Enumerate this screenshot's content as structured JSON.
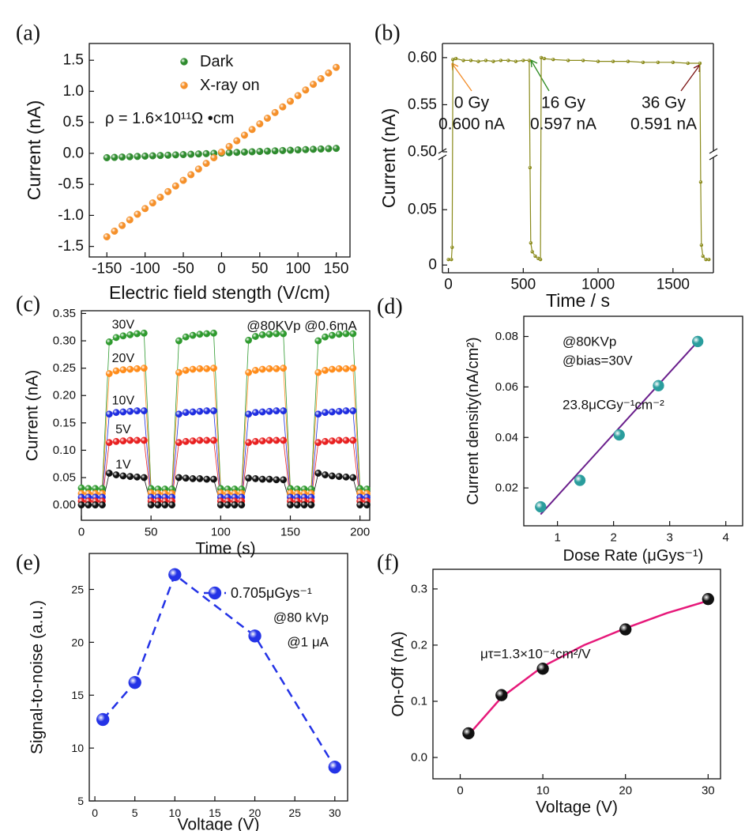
{
  "chart_data": [
    {
      "type": "scatter",
      "label": "(a)",
      "xlabel": "Electric field stength (V/cm)",
      "ylabel": "Current (nA)",
      "xlim": [
        -173,
        168
      ],
      "xticks": [
        -150,
        -100,
        -50,
        0,
        50,
        100,
        150
      ],
      "ylim": [
        -1.67,
        1.77
      ],
      "yticks": [
        -1.5,
        {
          "value": -1,
          "label": "-1.0"
        },
        -0.5,
        {
          "value": 0,
          "label": "0.0"
        },
        0.5,
        {
          "value": 1,
          "label": "1.0"
        },
        1.5
      ],
      "legend": "upper center",
      "grid": false,
      "annotations": [
        {
          "text": "ρ = 1.6×10¹¹Ω •cm",
          "color": "#111111"
        }
      ],
      "x": [
        -150,
        -140,
        -130,
        -120,
        -110,
        -100,
        -90,
        -80,
        -70,
        -60,
        -50,
        -40,
        -30,
        -20,
        -10,
        0,
        10,
        20,
        30,
        40,
        50,
        60,
        70,
        80,
        90,
        100,
        110,
        120,
        130,
        140,
        150
      ],
      "series": [
        {
          "name": "Dark",
          "color": "#2e8b2e",
          "marker": true,
          "values": [
            -0.07,
            -0.065,
            -0.06,
            -0.055,
            -0.05,
            -0.045,
            -0.04,
            -0.035,
            -0.03,
            -0.025,
            -0.02,
            -0.015,
            -0.01,
            -0.005,
            0,
            0.005,
            0.01,
            0.015,
            0.02,
            0.025,
            0.03,
            0.035,
            0.04,
            0.045,
            0.05,
            0.055,
            0.06,
            0.065,
            0.07,
            0.075,
            0.08
          ]
        },
        {
          "name": "X-ray on",
          "color": "#f5902a",
          "marker": true,
          "values": [
            -1.345,
            -1.254,
            -1.163,
            -1.072,
            -0.981,
            -0.89,
            -0.799,
            -0.708,
            -0.617,
            -0.526,
            -0.435,
            -0.344,
            -0.253,
            -0.162,
            -0.071,
            0.02,
            0.111,
            0.202,
            0.293,
            0.384,
            0.475,
            0.566,
            0.657,
            0.748,
            0.839,
            0.93,
            1.021,
            1.112,
            1.203,
            1.294,
            1.385
          ]
        }
      ]
    },
    {
      "type": "line",
      "label": "(b)",
      "xlabel": "Time / s",
      "ylabel": "Current (nA)",
      "xlim": [
        -40,
        1770
      ],
      "xticks": [
        0,
        500,
        1000,
        1500
      ],
      "ylim_lower": [
        -0.007,
        0.098
      ],
      "yticks_lower": [
        0,
        0.05
      ],
      "ylim_upper": [
        0.5,
        0.615
      ],
      "yticks_upper": [
        {
          "value": 0.5,
          "label": "0.50"
        },
        0.55,
        {
          "value": 0.6,
          "label": "0.60"
        }
      ],
      "grid": false,
      "annotations": [
        {
          "text": "0 Gy",
          "color": "#f28c28"
        },
        {
          "text": "0.600 nA",
          "color": "#f28c28"
        },
        {
          "text": "16 Gy",
          "color": "#2e8b22"
        },
        {
          "text": "0.597 nA",
          "color": "#2e8b22"
        },
        {
          "text": "36 Gy",
          "color": "#7a1010"
        },
        {
          "text": "0.591 nA",
          "color": "#7a1010"
        }
      ],
      "series": [
        {
          "color": "#8a8a1a",
          "line": "solid",
          "marker": true,
          "x": [
            0,
            20,
            25,
            30,
            50,
            100,
            150,
            200,
            250,
            300,
            350,
            400,
            450,
            500,
            540,
            545,
            550,
            560,
            580,
            600,
            615,
            620,
            640,
            700,
            800,
            900,
            1000,
            1100,
            1200,
            1300,
            1400,
            1500,
            1600,
            1680,
            1685,
            1690,
            1700,
            1720,
            1740
          ],
          "values": [
            0.005,
            0.005,
            0.016,
            0.598,
            0.599,
            0.597,
            0.597,
            0.596,
            0.597,
            0.596,
            0.597,
            0.597,
            0.596,
            0.597,
            0.597,
            0.088,
            0.02,
            0.012,
            0.008,
            0.006,
            0.005,
            0.6,
            0.599,
            0.598,
            0.597,
            0.597,
            0.596,
            0.596,
            0.596,
            0.595,
            0.595,
            0.595,
            0.594,
            0.594,
            0.075,
            0.018,
            0.008,
            0.005,
            0.005
          ]
        }
      ]
    },
    {
      "type": "scatter",
      "label": "(c)",
      "xlabel": "Time (s)",
      "ylabel": "Current (nA)",
      "xlim": [
        0,
        207
      ],
      "xticks": [
        0,
        50,
        100,
        150,
        200
      ],
      "ylim": [
        -0.028,
        0.355
      ],
      "yticks": [
        {
          "value": 0,
          "label": "0.00"
        },
        0.05,
        {
          "value": 0.1,
          "label": "0.10"
        },
        0.15,
        {
          "value": 0.2,
          "label": "0.20"
        },
        0.25,
        {
          "value": 0.3,
          "label": "0.30"
        },
        0.35
      ],
      "legend": "inline",
      "grid": false,
      "annotations": [
        {
          "text": "@80KVp @0.6mA",
          "color": "#111111"
        }
      ],
      "x": [
        0,
        5,
        10,
        15,
        20,
        25,
        30,
        35,
        40,
        45,
        50,
        55,
        60,
        65,
        70,
        75,
        80,
        85,
        90,
        95,
        100,
        105,
        110,
        115,
        120,
        125,
        130,
        135,
        140,
        145,
        150,
        155,
        160,
        165,
        170,
        175,
        180,
        185,
        190,
        195,
        200,
        205
      ],
      "series": [
        {
          "name": "30V",
          "color": "#2e9a2e",
          "line": "solid",
          "marker": true,
          "values": [
            0.031,
            0.03,
            0.03,
            0.03,
            0.298,
            0.306,
            0.309,
            0.311,
            0.313,
            0.314,
            0.03,
            0.029,
            0.029,
            0.029,
            0.3,
            0.307,
            0.31,
            0.312,
            0.313,
            0.314,
            0.03,
            0.029,
            0.029,
            0.029,
            0.301,
            0.308,
            0.311,
            0.312,
            0.313,
            0.313,
            0.03,
            0.029,
            0.029,
            0.029,
            0.3,
            0.307,
            0.31,
            0.312,
            0.313,
            0.313,
            0.03,
            0.029
          ]
        },
        {
          "name": "20V",
          "color": "#ff8c1a",
          "line": "solid",
          "marker": true,
          "values": [
            0.021,
            0.021,
            0.021,
            0.021,
            0.24,
            0.245,
            0.247,
            0.248,
            0.249,
            0.25,
            0.022,
            0.021,
            0.021,
            0.021,
            0.242,
            0.246,
            0.248,
            0.249,
            0.249,
            0.25,
            0.022,
            0.021,
            0.021,
            0.021,
            0.242,
            0.246,
            0.248,
            0.249,
            0.249,
            0.25,
            0.022,
            0.021,
            0.021,
            0.021,
            0.242,
            0.246,
            0.248,
            0.249,
            0.249,
            0.25,
            0.022,
            0.021
          ]
        },
        {
          "name": "10V",
          "color": "#1f2de0",
          "line": "solid",
          "marker": true,
          "values": [
            0.014,
            0.014,
            0.014,
            0.014,
            0.166,
            0.169,
            0.17,
            0.171,
            0.172,
            0.172,
            0.014,
            0.014,
            0.014,
            0.014,
            0.166,
            0.169,
            0.17,
            0.171,
            0.172,
            0.172,
            0.014,
            0.014,
            0.014,
            0.014,
            0.166,
            0.169,
            0.17,
            0.171,
            0.172,
            0.172,
            0.014,
            0.014,
            0.014,
            0.014,
            0.166,
            0.169,
            0.17,
            0.171,
            0.172,
            0.172,
            0.014,
            0.014
          ]
        },
        {
          "name": "5V",
          "color": "#e82020",
          "line": "solid",
          "marker": true,
          "values": [
            0.007,
            0.007,
            0.007,
            0.007,
            0.114,
            0.116,
            0.117,
            0.118,
            0.118,
            0.118,
            0.007,
            0.007,
            0.007,
            0.007,
            0.114,
            0.116,
            0.117,
            0.118,
            0.118,
            0.118,
            0.007,
            0.007,
            0.007,
            0.007,
            0.114,
            0.116,
            0.117,
            0.118,
            0.118,
            0.118,
            0.007,
            0.007,
            0.007,
            0.007,
            0.114,
            0.116,
            0.117,
            0.118,
            0.118,
            0.118,
            0.007,
            0.007
          ]
        },
        {
          "name": "1V",
          "color": "#111111",
          "line": "solid",
          "marker": true,
          "values": [
            0,
            0,
            0,
            0,
            0.058,
            0.055,
            0.053,
            0.052,
            0.051,
            0.05,
            0,
            0,
            0,
            0,
            0.05,
            0.049,
            0.048,
            0.048,
            0.047,
            0.047,
            0,
            0,
            0,
            0,
            0.049,
            0.048,
            0.047,
            0.047,
            0.046,
            0.046,
            0,
            0,
            0,
            0,
            0.058,
            0.055,
            0.053,
            0.052,
            0.051,
            0.05,
            0,
            0
          ]
        }
      ]
    },
    {
      "type": "scatter",
      "label": "(d)",
      "xlabel": "Dose Rate (μGys⁻¹)",
      "ylabel": "Current density(nA/cm²)",
      "xlim": [
        0.4,
        4.3
      ],
      "xticks": [
        1,
        2,
        3,
        4
      ],
      "ylim": [
        0.005,
        0.088
      ],
      "yticks": [
        0.02,
        0.04,
        0.06,
        0.08
      ],
      "grid": false,
      "annotations": [
        {
          "text": "@80KVp",
          "color": "#6a1f8c"
        },
        {
          "text": "@bias=30V",
          "color": "#6a1f8c"
        },
        {
          "text": "23.8μCGy⁻¹cm⁻²",
          "color": "#6a1f8c"
        }
      ],
      "series": [
        {
          "color": "#6a1f8c",
          "line": "solid",
          "x": [
            0.7,
            3.5
          ],
          "values": [
            0.0095,
            0.078
          ]
        },
        {
          "color": "#2a9d9d",
          "marker": true,
          "x": [
            0.7,
            1.4,
            2.1,
            2.8,
            3.5
          ],
          "values": [
            0.0125,
            0.023,
            0.041,
            0.0605,
            0.078
          ]
        }
      ]
    },
    {
      "type": "line",
      "label": "(e)",
      "xlabel": "Voltage (V)",
      "ylabel": "Signal-to-noise (a.u.)",
      "xlim": [
        -0.7,
        31.6
      ],
      "xticks": [
        0,
        5,
        10,
        15,
        20,
        25,
        30
      ],
      "ylim": [
        5,
        28.4
      ],
      "yticks": [
        5,
        10,
        15,
        20,
        25
      ],
      "legend": "upper right",
      "grid": false,
      "annotations": [
        {
          "text": "@80 kVp",
          "color": "#111111"
        },
        {
          "text": "@1 μA",
          "color": "#111111"
        }
      ],
      "series": [
        {
          "name": "0.705μGys⁻¹",
          "color": "#2433e6",
          "line": "dashed",
          "marker": true,
          "x": [
            1,
            5,
            10,
            20,
            30
          ],
          "values": [
            12.7,
            16.2,
            26.4,
            20.6,
            8.2
          ]
        }
      ]
    },
    {
      "type": "scatter",
      "label": "(f)",
      "xlabel": "Voltage (V)",
      "ylabel": "On-Off (nA)",
      "xlim": [
        -3.3,
        31.5
      ],
      "xticks": [
        0,
        10,
        20,
        30
      ],
      "ylim": [
        -0.038,
        0.335
      ],
      "yticks": [
        {
          "value": 0,
          "label": "0.0"
        },
        0.1,
        0.2,
        0.3
      ],
      "grid": false,
      "annotations": [
        {
          "text": "μτ=1.3×10⁻⁴cm²/V",
          "color": "#e6197a"
        }
      ],
      "series": [
        {
          "color": "#e6197a",
          "line": "solid",
          "x": [
            1,
            5,
            10,
            15,
            20,
            25,
            30
          ],
          "values": [
            0.04,
            0.107,
            0.162,
            0.2,
            0.23,
            0.257,
            0.279
          ]
        },
        {
          "color": "#111111",
          "marker": true,
          "x": [
            1,
            5,
            10,
            20,
            30
          ],
          "values": [
            0.043,
            0.111,
            0.158,
            0.228,
            0.282
          ]
        }
      ]
    }
  ]
}
